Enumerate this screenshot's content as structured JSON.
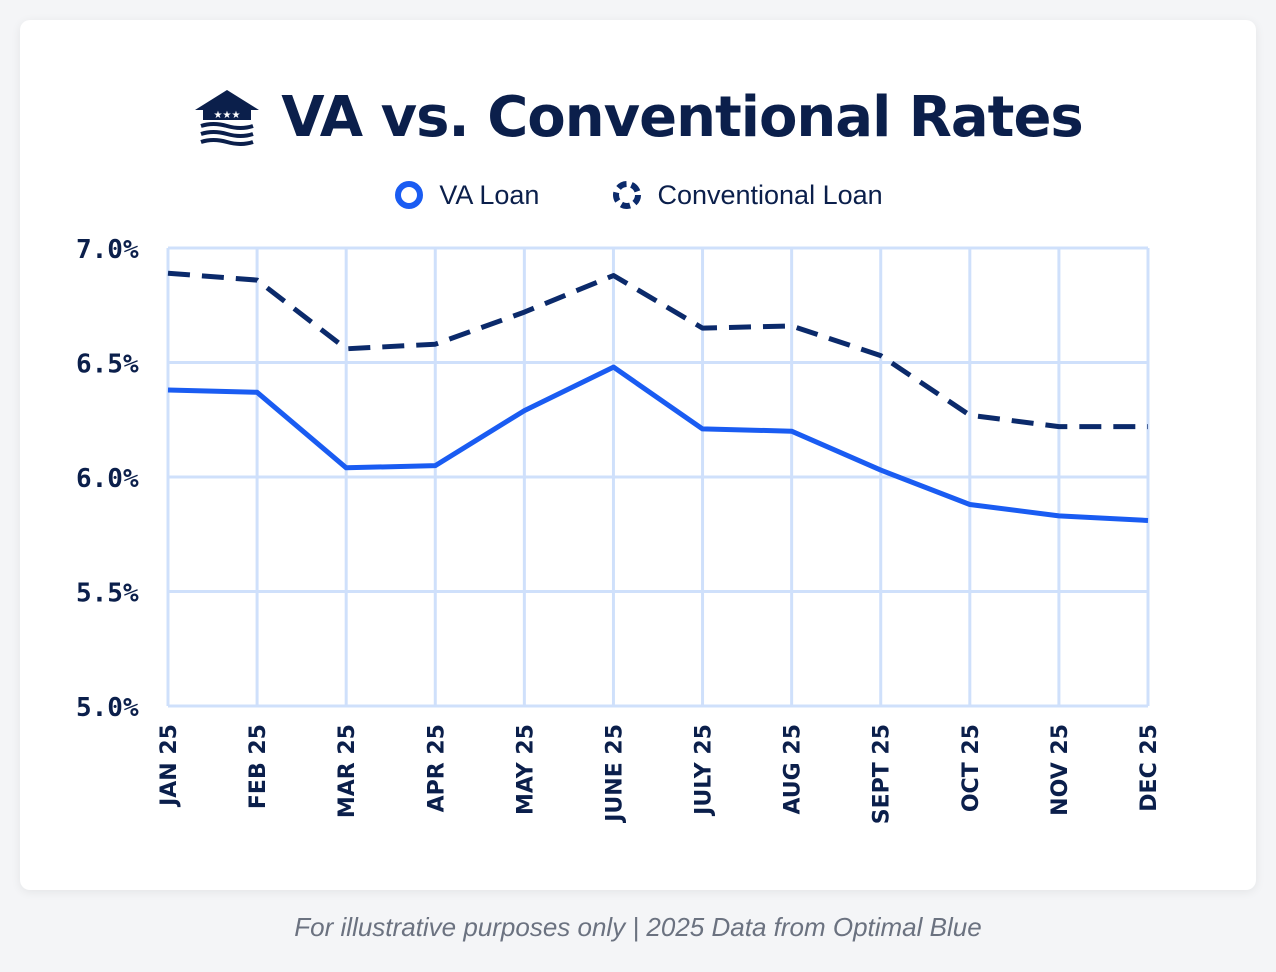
{
  "chart_data": {
    "type": "line",
    "title": "VA vs. Conventional Rates",
    "categories": [
      "JAN 25",
      "FEB 25",
      "MAR 25",
      "APR 25",
      "MAY 25",
      "JUNE 25",
      "JULY 25",
      "AUG 25",
      "SEPT 25",
      "OCT 25",
      "NOV 25",
      "DEC 25"
    ],
    "series": [
      {
        "name": "VA Loan",
        "color": "#1a5cf2",
        "style": "solid",
        "values": [
          6.38,
          6.37,
          6.04,
          6.05,
          6.29,
          6.48,
          6.21,
          6.2,
          6.03,
          5.88,
          5.83,
          5.81
        ]
      },
      {
        "name": "Conventional Loan",
        "color": "#0b2a6b",
        "style": "dashed",
        "values": [
          6.89,
          6.86,
          6.56,
          6.58,
          6.72,
          6.88,
          6.65,
          6.66,
          6.53,
          6.27,
          6.22,
          6.22
        ]
      }
    ],
    "yticks": [
      "7.0%",
      "6.5%",
      "6.0%",
      "5.5%",
      "5.0%"
    ],
    "ylim": [
      5.0,
      7.0
    ],
    "grid": true,
    "legend": "top-center"
  },
  "footnote": "For illustrative purposes only | 2025 Data from Optimal Blue",
  "logo": {
    "icon": "house-with-stars-logo-icon",
    "color": "#0b1f4b"
  }
}
